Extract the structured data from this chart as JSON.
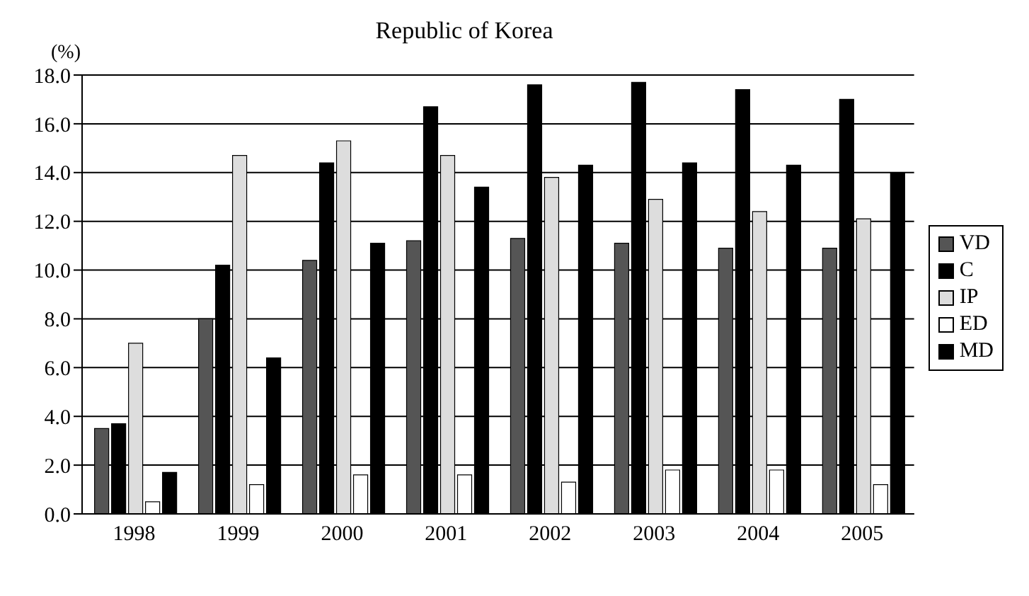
{
  "chart_data": {
    "type": "bar",
    "title": "Republic of Korea",
    "ylabel": "(%)",
    "categories": [
      "1998",
      "1999",
      "2000",
      "2001",
      "2002",
      "2003",
      "2004",
      "2005"
    ],
    "series": [
      {
        "name": "VD",
        "color": "#555555",
        "values": [
          3.5,
          8.0,
          10.4,
          11.2,
          11.3,
          11.1,
          10.9,
          10.9
        ]
      },
      {
        "name": "C",
        "color": "#000000",
        "values": [
          3.7,
          10.2,
          14.4,
          16.7,
          17.6,
          17.7,
          17.4,
          17.0
        ]
      },
      {
        "name": "IP",
        "color": "#dddddd",
        "values": [
          7.0,
          14.7,
          15.3,
          14.7,
          13.8,
          12.9,
          12.4,
          12.1
        ]
      },
      {
        "name": "ED",
        "color": "#ffffff",
        "values": [
          0.5,
          1.2,
          1.6,
          1.6,
          1.3,
          1.8,
          1.8,
          1.2
        ]
      },
      {
        "name": "MD",
        "color": "#000000",
        "values": [
          1.7,
          6.4,
          11.1,
          13.4,
          14.3,
          14.4,
          14.3,
          14.0
        ]
      }
    ],
    "ylim": [
      0,
      18
    ],
    "yticks": [
      {
        "value": 0,
        "label": "0.0"
      },
      {
        "value": 2,
        "label": "2.0"
      },
      {
        "value": 4,
        "label": "4.0"
      },
      {
        "value": 6,
        "label": "6.0"
      },
      {
        "value": 8,
        "label": "8.0"
      },
      {
        "value": 10,
        "label": "10.0"
      },
      {
        "value": 12,
        "label": "12.0"
      },
      {
        "value": 14,
        "label": "14.0"
      },
      {
        "value": 16,
        "label": "16.0"
      },
      {
        "value": 18,
        "label": "18.0"
      }
    ],
    "grid": "y",
    "legend": "right"
  }
}
